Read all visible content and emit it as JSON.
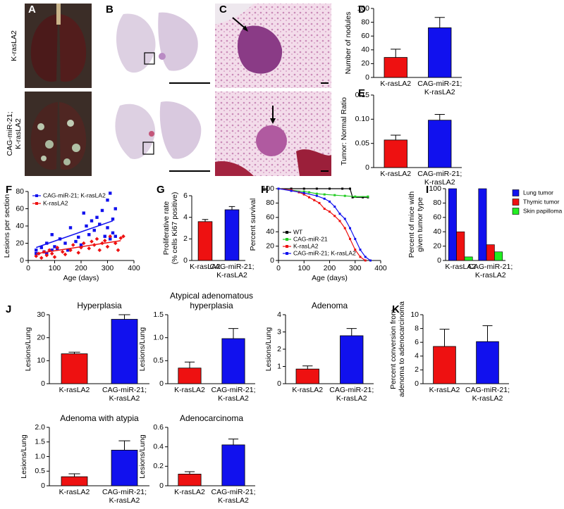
{
  "figure": {
    "labels": [
      "A",
      "B",
      "C",
      "D",
      "E",
      "F",
      "G",
      "H",
      "I",
      "J",
      "K"
    ],
    "image_row_labels": [
      "K-rasLA2",
      "CAG-miR-21;\nK-rasLA2"
    ]
  },
  "chart_data": [
    {
      "type": "bar",
      "ylabel": "Number of nodules",
      "categories": [
        "K-rasLA2",
        "CAG-miR-21;\nK-rasLA2"
      ],
      "values": [
        29,
        72
      ],
      "errors": [
        12,
        15
      ],
      "colors": [
        "#ee1111",
        "#1111ee"
      ],
      "ylim": [
        0,
        100
      ],
      "yticks": [
        0,
        20,
        40,
        60,
        80,
        100
      ]
    },
    {
      "type": "bar",
      "ylabel": "Tumor: Normal Ratio",
      "categories": [
        "K-rasLA2",
        "CAG-miR-21;\nK-rasLA2"
      ],
      "values": [
        0.057,
        0.098
      ],
      "errors": [
        0.01,
        0.012
      ],
      "colors": [
        "#ee1111",
        "#1111ee"
      ],
      "ylim": [
        0,
        0.15
      ],
      "yticks": [
        0,
        0.05,
        {
          "value": 0.1,
          "label": "0.10"
        },
        0.15
      ]
    },
    {
      "type": "scatter",
      "xlabel": "Age (days)",
      "ylabel": "Lesions per section",
      "xlim": [
        0,
        400
      ],
      "xticks": [
        0,
        100,
        200,
        300,
        400
      ],
      "ylim": [
        0,
        80
      ],
      "yticks": [
        0,
        20,
        40,
        60,
        80
      ],
      "legend": "upper left",
      "series": [
        {
          "name": "CAG-miR-21; K-rasLA2",
          "color": "#1111ee",
          "marker": "square",
          "x": [
            30,
            30,
            50,
            60,
            70,
            70,
            90,
            90,
            100,
            110,
            120,
            140,
            150,
            160,
            180,
            190,
            200,
            210,
            220,
            230,
            240,
            250,
            260,
            270,
            280,
            290,
            300,
            300,
            310,
            310,
            320,
            320,
            330,
            330
          ],
          "values": [
            8,
            12,
            15,
            10,
            20,
            8,
            30,
            12,
            16,
            14,
            25,
            20,
            12,
            38,
            22,
            27,
            18,
            55,
            40,
            30,
            46,
            35,
            50,
            42,
            58,
            28,
            70,
            38,
            78,
            25,
            48,
            32,
            60,
            28
          ],
          "trend": {
            "x": [
              30,
              320
            ],
            "values": [
              15,
              46
            ]
          }
        },
        {
          "name": "K-rasLA2",
          "color": "#ee1111",
          "marker": "diamond",
          "x": [
            30,
            40,
            50,
            60,
            70,
            80,
            90,
            100,
            110,
            130,
            140,
            160,
            170,
            190,
            200,
            210,
            230,
            240,
            250,
            260,
            270,
            280,
            290,
            300,
            310,
            330,
            340,
            350,
            360
          ],
          "values": [
            5,
            8,
            3,
            10,
            6,
            12,
            8,
            4,
            15,
            10,
            7,
            12,
            18,
            9,
            15,
            20,
            14,
            22,
            18,
            25,
            12,
            20,
            23,
            16,
            28,
            20,
            12,
            26,
            28
          ],
          "trend": {
            "x": [
              30,
              350
            ],
            "values": [
              8,
              23
            ]
          }
        }
      ]
    },
    {
      "type": "bar",
      "ylabel": "Proliferative rate\n(% cells Ki67 positive)",
      "categories": [
        "K-rasLA2",
        "CAG-miR-21;\nK-rasLA2"
      ],
      "values": [
        3.6,
        4.7
      ],
      "errors": [
        0.2,
        0.3
      ],
      "colors": [
        "#ee1111",
        "#1111ee"
      ],
      "ylim": [
        0,
        6
      ],
      "yticks": [
        0,
        2,
        4,
        6
      ]
    },
    {
      "type": "line",
      "xlabel": "Age (days)",
      "ylabel": "Percent survival",
      "xlim": [
        0,
        400
      ],
      "xticks": [
        0,
        100,
        200,
        300,
        400
      ],
      "ylim": [
        0,
        100
      ],
      "yticks": [
        0,
        20,
        40,
        60,
        80,
        100
      ],
      "legend": "lower left",
      "series": [
        {
          "name": "WT",
          "color": "#000000",
          "x": [
            0,
            50,
            100,
            150,
            200,
            250,
            280,
            290,
            330,
            350
          ],
          "values": [
            100,
            100,
            100,
            100,
            100,
            100,
            100,
            88,
            88,
            88
          ]
        },
        {
          "name": "CAG-miR-21",
          "color": "#22cc22",
          "x": [
            0,
            50,
            100,
            120,
            150,
            180,
            220,
            260,
            300,
            350
          ],
          "values": [
            100,
            98,
            96,
            95,
            93,
            92,
            91,
            90,
            89,
            89
          ]
        },
        {
          "name": "K-rasLA2",
          "color": "#ee1111",
          "x": [
            0,
            50,
            80,
            100,
            120,
            140,
            160,
            180,
            200,
            220,
            240,
            260,
            280,
            300,
            320,
            340
          ],
          "values": [
            100,
            98,
            95,
            92,
            88,
            84,
            80,
            72,
            68,
            62,
            55,
            45,
            30,
            15,
            5,
            0
          ]
        },
        {
          "name": "CAG-miR-21; K-rasLA2",
          "color": "#1111ee",
          "x": [
            0,
            50,
            100,
            150,
            180,
            200,
            220,
            240,
            260,
            280,
            300,
            320,
            340,
            360
          ],
          "values": [
            100,
            97,
            94,
            90,
            86,
            82,
            75,
            65,
            58,
            45,
            30,
            15,
            5,
            0
          ]
        }
      ]
    },
    {
      "type": "bar",
      "ylabel": "Percent of mice with\ngiven tumor type",
      "categories": [
        "K-rasLA2",
        "CAG-miR-21;\nK-rasLA2"
      ],
      "ylim": [
        0,
        100
      ],
      "yticks": [
        0,
        20,
        40,
        60,
        80,
        100
      ],
      "legend": "right",
      "series": [
        {
          "name": "Lung tumor",
          "color": "#1111ee",
          "values": [
            100,
            100
          ]
        },
        {
          "name": "Thymic tumor",
          "color": "#ee1111",
          "values": [
            40,
            22
          ]
        },
        {
          "name": "Skin papilloma",
          "color": "#22ee22",
          "values": [
            5,
            12
          ]
        }
      ]
    },
    {
      "type": "bar",
      "title": "Hyperplasia",
      "ylabel": "Lesions/Lung",
      "categories": [
        "K-rasLA2",
        "CAG-miR-21;\nK-rasLA2"
      ],
      "values": [
        13,
        28
      ],
      "errors": [
        0.7,
        2
      ],
      "colors": [
        "#ee1111",
        "#1111ee"
      ],
      "ylim": [
        0,
        30
      ],
      "yticks": [
        0,
        10,
        20,
        30
      ]
    },
    {
      "type": "bar",
      "title": "Atypical adenomatous\nhyperplasia",
      "ylabel": "Lesions/Lung",
      "categories": [
        "K-rasLA2",
        "CAG-miR-21;\nK-rasLA2"
      ],
      "values": [
        0.34,
        0.98
      ],
      "errors": [
        0.13,
        0.22
      ],
      "colors": [
        "#ee1111",
        "#1111ee"
      ],
      "ylim": [
        0,
        1.5
      ],
      "yticks": [
        0,
        0.5,
        {
          "value": 1,
          "label": "1.0"
        },
        1.5
      ]
    },
    {
      "type": "bar",
      "title": "Adenoma",
      "ylabel": "Lesions/Lung",
      "categories": [
        "K-rasLA2",
        "CAG-miR-21;\nK-rasLA2"
      ],
      "values": [
        0.85,
        2.78
      ],
      "errors": [
        0.18,
        0.42
      ],
      "colors": [
        "#ee1111",
        "#1111ee"
      ],
      "ylim": [
        0,
        4
      ],
      "yticks": [
        0,
        1,
        2,
        3,
        4
      ]
    },
    {
      "type": "bar",
      "ylabel": "Percent conversion from\nadenoma to adenocarcinoma",
      "categories": [
        "K-rasLA2",
        "CAG-miR-21;\nK-rasLA2"
      ],
      "values": [
        5.4,
        6.1
      ],
      "errors": [
        2.5,
        2.3
      ],
      "colors": [
        "#ee1111",
        "#1111ee"
      ],
      "ylim": [
        0,
        10
      ],
      "yticks": [
        0,
        2,
        4,
        6,
        8,
        10
      ]
    },
    {
      "type": "bar",
      "title": "Adenoma with atypia",
      "ylabel": "Lesions/Lung",
      "categories": [
        "K-rasLA2",
        "CAG-miR-21;\nK-rasLA2"
      ],
      "values": [
        0.31,
        1.22
      ],
      "errors": [
        0.1,
        0.32
      ],
      "colors": [
        "#ee1111",
        "#1111ee"
      ],
      "ylim": [
        0,
        2
      ],
      "yticks": [
        0,
        0.5,
        {
          "value": 1,
          "label": "1.0"
        },
        1.5,
        {
          "value": 2,
          "label": "2.0"
        }
      ]
    },
    {
      "type": "bar",
      "title": "Adenocarcinoma",
      "ylabel": "Lesions/Lung",
      "categories": [
        "K-rasLA2",
        "CAG-miR-21;\nK-rasLA2"
      ],
      "values": [
        0.12,
        0.42
      ],
      "errors": [
        0.025,
        0.06
      ],
      "colors": [
        "#ee1111",
        "#1111ee"
      ],
      "ylim": [
        0,
        0.6
      ],
      "yticks": [
        0,
        0.2,
        0.4,
        0.6
      ]
    }
  ]
}
